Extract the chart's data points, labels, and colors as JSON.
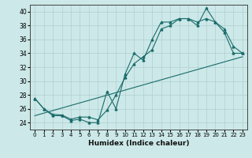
{
  "xlabel": "Humidex (Indice chaleur)",
  "xlim": [
    -0.5,
    23.5
  ],
  "ylim": [
    23,
    41
  ],
  "yticks": [
    24,
    26,
    28,
    30,
    32,
    34,
    36,
    38,
    40
  ],
  "xticks": [
    0,
    1,
    2,
    3,
    4,
    5,
    6,
    7,
    8,
    9,
    10,
    11,
    12,
    13,
    14,
    15,
    16,
    17,
    18,
    19,
    20,
    21,
    22,
    23
  ],
  "bg_color": "#cce8e8",
  "grid_color": "#b0d0d0",
  "line_color": "#1a6b6b",
  "series1_x": [
    0,
    1,
    2,
    3,
    4,
    5,
    6,
    7,
    8,
    9,
    10,
    11,
    12,
    13,
    14,
    15,
    16,
    17,
    18,
    19,
    20,
    21,
    22,
    23
  ],
  "series1_y": [
    27.5,
    26.0,
    25.0,
    25.0,
    24.3,
    24.5,
    24.0,
    24.0,
    28.5,
    26.0,
    31.0,
    34.0,
    33.0,
    36.0,
    38.5,
    38.5,
    39.0,
    39.0,
    38.0,
    40.5,
    38.5,
    37.0,
    34.0,
    34.0
  ],
  "series2_x": [
    0,
    1,
    2,
    3,
    4,
    5,
    6,
    7,
    8,
    9,
    10,
    11,
    12,
    13,
    14,
    15,
    16,
    17,
    18,
    19,
    20,
    21,
    22,
    23
  ],
  "series2_y": [
    27.5,
    26.0,
    25.2,
    25.1,
    24.5,
    24.8,
    24.8,
    24.4,
    25.8,
    28.0,
    30.5,
    32.5,
    33.5,
    34.5,
    37.5,
    38.0,
    39.0,
    39.0,
    38.5,
    39.0,
    38.5,
    37.5,
    35.0,
    34.0
  ],
  "series3_x": [
    0,
    23
  ],
  "series3_y": [
    25.0,
    33.5
  ]
}
